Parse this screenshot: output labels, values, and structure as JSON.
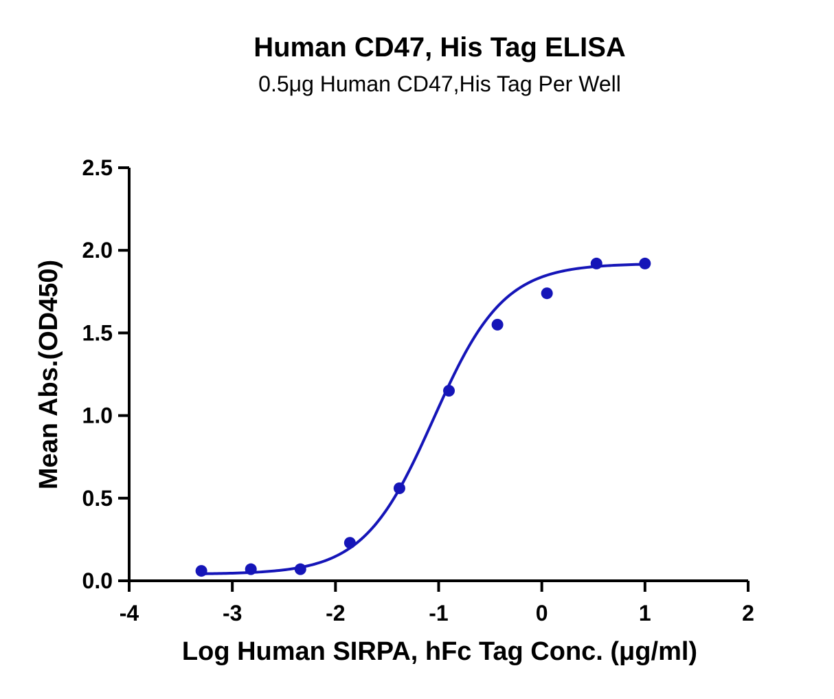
{
  "chart_data": {
    "type": "scatter",
    "title": "Human CD47, His Tag ELISA",
    "subtitle": "0.5μg Human CD47,His Tag Per Well",
    "xlabel": "Log Human SIRPA, hFc Tag Conc. (μg/ml)",
    "ylabel": "Mean Abs.(OD450)",
    "xlim": [
      -4,
      2
    ],
    "ylim": [
      0,
      2.5
    ],
    "x_ticks": [
      -4,
      -3,
      -2,
      -1,
      0,
      1,
      2
    ],
    "x_tick_labels": [
      "-4",
      "-3",
      "-2",
      "-1",
      "0",
      "1",
      "2"
    ],
    "y_ticks": [
      0,
      0.5,
      1,
      1.5,
      2,
      2.5
    ],
    "y_tick_labels": [
      "0.0",
      "0.5",
      "1.0",
      "1.5",
      "2.0",
      "2.5"
    ],
    "grid": false,
    "series": [
      {
        "color": "#1515b8",
        "x": [
          -3.3,
          -2.82,
          -2.34,
          -1.86,
          -1.38,
          -0.9,
          -0.43,
          0.05,
          0.53,
          1.0
        ],
        "y": [
          0.06,
          0.07,
          0.07,
          0.23,
          0.56,
          1.15,
          1.55,
          1.74,
          1.92,
          1.92
        ]
      }
    ],
    "fit_curve": {
      "type": "4PL",
      "color": "#1515b8",
      "bottom": 0.04,
      "top": 1.92,
      "log_ec50": -1.05,
      "hill_slope": 1.28
    }
  }
}
